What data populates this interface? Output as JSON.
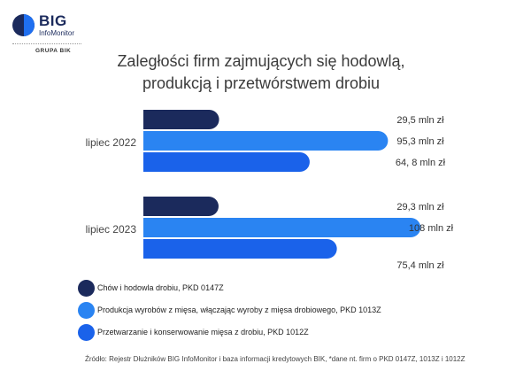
{
  "brand": {
    "name": "BIG",
    "sub": "InfoMonitor",
    "group": "GRUPA BIK"
  },
  "chart_data": {
    "type": "bar",
    "orientation": "horizontal",
    "title_line1": "Zaległości firm zajmujących się hodowlą,",
    "title_line2": "produkcją i przetwórstwem drobiu",
    "categories": [
      "lipiec 2022",
      "lipiec 2023"
    ],
    "series": [
      {
        "name": "Chów i hodowla drobiu, PKD 0147Z",
        "color": "#1b2a5c",
        "values": [
          29.5,
          29.3
        ],
        "labels": [
          "29,5 mln zł",
          "29,3 mln zł"
        ]
      },
      {
        "name": "Produkcja wyrobów z mięsa, włączając wyroby z mięsa drobiowego, PKD 1013Z",
        "color": "#2a84f2",
        "values": [
          95.3,
          108
        ],
        "labels": [
          "95,3 mln zł",
          "108 mln zł"
        ]
      },
      {
        "name": "Przetwarzanie i konserwowanie mięsa z drobiu, PKD 1012Z",
        "color": "#1a62ea",
        "values": [
          64.8,
          75.4
        ],
        "labels": [
          "64, 8 mln zł",
          "75,4 mln zł"
        ]
      }
    ],
    "legend_position": "bottom-left",
    "grid": false
  },
  "source": "Źródło: Rejestr Dłużników BIG InfoMonitor i baza informacji kredytowych BIK, *dane nt. firm o PKD 0147Z, 1013Z  i 1012Z"
}
